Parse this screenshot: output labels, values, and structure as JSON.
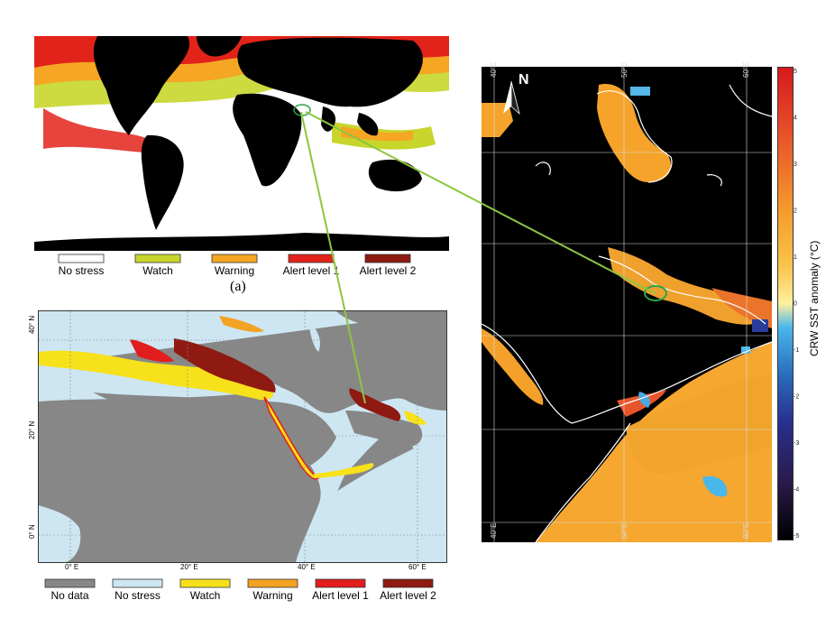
{
  "panel_a": {
    "caption": "(a)",
    "legend": [
      {
        "label": "No stress",
        "color": "#ffffff"
      },
      {
        "label": "Watch",
        "color": "#c8d62b"
      },
      {
        "label": "Warning",
        "color": "#f5a623"
      },
      {
        "label": "Alert level 1",
        "color": "#e2231a"
      },
      {
        "label": "Alert level 2",
        "color": "#8e1a12"
      }
    ]
  },
  "panel_b": {
    "lat_ticks": [
      "40° N",
      "20° N",
      "0° N"
    ],
    "lon_ticks": [
      "0° E",
      "20° E",
      "40° E",
      "60° E"
    ],
    "legend": [
      {
        "label": "No data",
        "color": "#878787"
      },
      {
        "label": "No stress",
        "color": "#cde6f2"
      },
      {
        "label": "Watch",
        "color": "#f7e11a"
      },
      {
        "label": "Warning",
        "color": "#f4a223"
      },
      {
        "label": "Alert level 1",
        "color": "#e21d1d"
      },
      {
        "label": "Alert level 2",
        "color": "#8e1a12"
      }
    ]
  },
  "panel_c": {
    "north_label": "N",
    "lon_ticks_top": [
      "40°E",
      "50°E",
      "60°E"
    ],
    "lon_ticks_bottom": [
      "40°E",
      "50°E",
      "60°E"
    ],
    "colorbar_label": "CRW SST anomaly (°C)",
    "colorbar_ticks": [
      "5",
      "4",
      "3",
      "2",
      "1",
      "0",
      "-1",
      "-2",
      "-3",
      "-4",
      "-5"
    ]
  },
  "colors": {
    "connector": "#8cc63f",
    "highlight_circle": "#2aa34a",
    "map_land_a": "#000000",
    "ocean_b": "#cde6f2",
    "land_b": "#878787"
  }
}
